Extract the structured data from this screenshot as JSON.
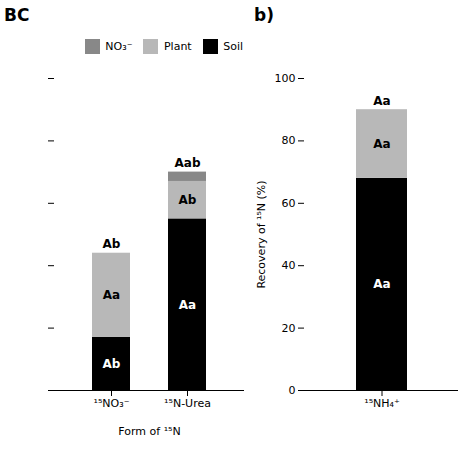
{
  "chart_data": [
    {
      "type": "bar",
      "title": "BC",
      "stacked": true,
      "categories": [
        "¹⁵NO₃⁻",
        "¹⁵N-Urea"
      ],
      "xlabel": "Form of ¹⁵N",
      "series": [
        {
          "name": "Soil",
          "color": "#000000",
          "values": [
            17,
            55
          ],
          "labels": [
            "Ab",
            "Aa"
          ]
        },
        {
          "name": "Plant",
          "color": "#b8b8b8",
          "values": [
            27,
            12
          ],
          "labels": [
            "Aa",
            "Ab"
          ]
        },
        {
          "name": "NO₃⁻",
          "color": "#888888",
          "values": [
            0,
            3
          ]
        }
      ],
      "total_labels": [
        "Ab",
        "Aab"
      ],
      "ylim": [
        0,
        100
      ],
      "yticks": [
        0,
        20,
        40,
        60,
        80,
        100
      ],
      "legend": "upper right",
      "tick_labels": "x",
      "grid": false
    },
    {
      "type": "bar",
      "title": "b)",
      "stacked": true,
      "categories": [
        "¹⁵NH₄⁺"
      ],
      "ylabel": "Recovery of ¹⁵N (%)",
      "series": [
        {
          "name": "Soil",
          "color": "#000000",
          "values": [
            68
          ],
          "labels": [
            "Aa"
          ]
        },
        {
          "name": "Plant",
          "color": "#b8b8b8",
          "values": [
            22
          ],
          "labels": [
            "Aa"
          ]
        },
        {
          "name": "NO₃⁻",
          "color": "#888888",
          "values": [
            0
          ]
        }
      ],
      "total_labels": [
        "Aa"
      ],
      "ylim": [
        0,
        100
      ],
      "yticks": [
        0,
        20,
        40,
        60,
        80,
        100
      ],
      "tick_labels": true,
      "grid": false
    }
  ]
}
